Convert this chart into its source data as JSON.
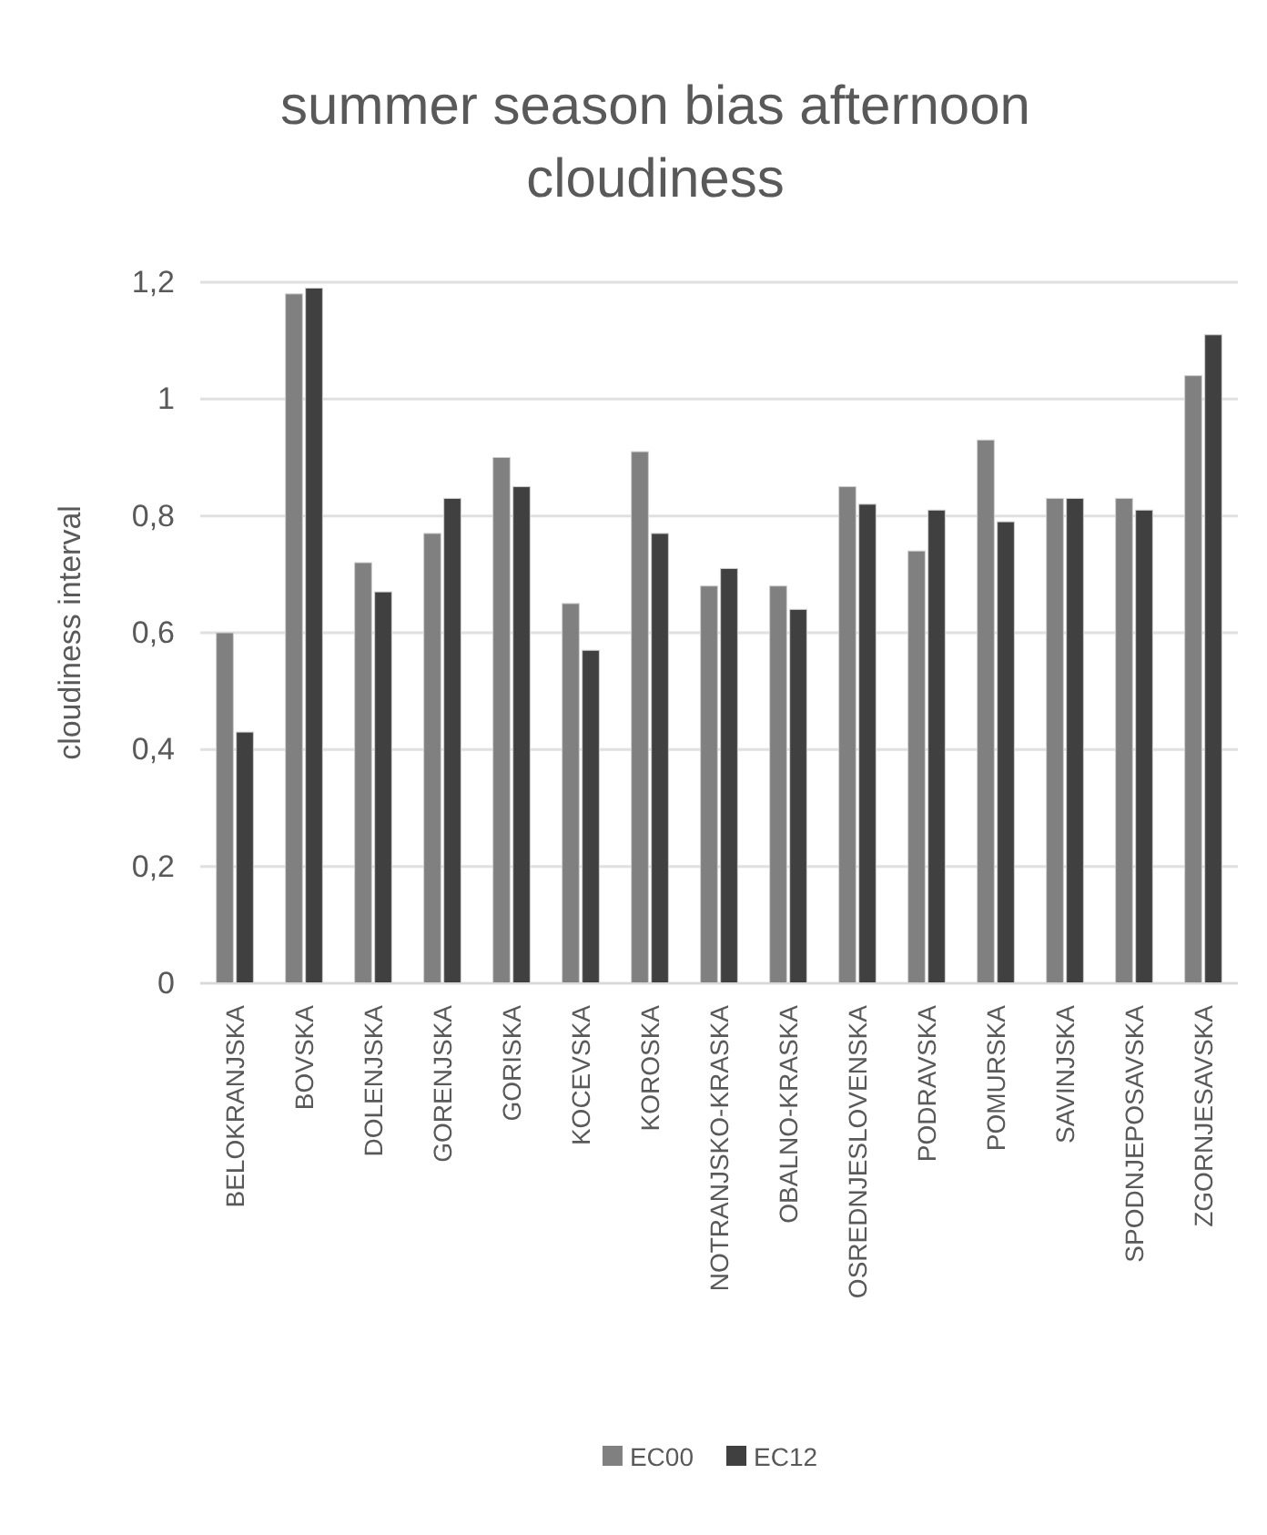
{
  "chart_data": {
    "type": "bar",
    "title": "summer season bias afternoon cloudiness",
    "ylabel": "cloudiness interval",
    "categories": [
      "BELOKRANJSKA",
      "BOVSKA",
      "DOLENJSKA",
      "GORENJSKA",
      "GORISKA",
      "KOCEVSKA",
      "KOROSKA",
      "NOTRANJSKO-KRASKA",
      "OBALNO-KRASKA",
      "OSREDNJESLOVENSKA",
      "PODRAVSKA",
      "POMURSKA",
      "SAVINJSKA",
      "SPODNJEPOSAVSKA",
      "ZGORNJESAVSKA"
    ],
    "series": [
      {
        "name": "EC00",
        "color": "#808080",
        "values": [
          0.6,
          1.18,
          0.72,
          0.77,
          0.9,
          0.65,
          0.91,
          0.68,
          0.68,
          0.85,
          0.74,
          0.93,
          0.83,
          0.83,
          1.04
        ]
      },
      {
        "name": "EC12",
        "color": "#404040",
        "values": [
          0.43,
          1.19,
          0.67,
          0.83,
          0.85,
          0.57,
          0.77,
          0.71,
          0.64,
          0.82,
          0.81,
          0.79,
          0.83,
          0.81,
          1.11
        ]
      }
    ],
    "ylim": [
      0,
      1.2
    ],
    "yticks": [
      0,
      {
        "value": 0.2,
        "label": "0,2"
      },
      {
        "value": 0.4,
        "label": "0,4"
      },
      {
        "value": 0.6,
        "label": "0,6"
      },
      {
        "value": 0.8,
        "label": "0,8"
      },
      1,
      {
        "value": 1.2,
        "label": "1,2"
      }
    ],
    "grid": "y",
    "legend": "bottom"
  }
}
